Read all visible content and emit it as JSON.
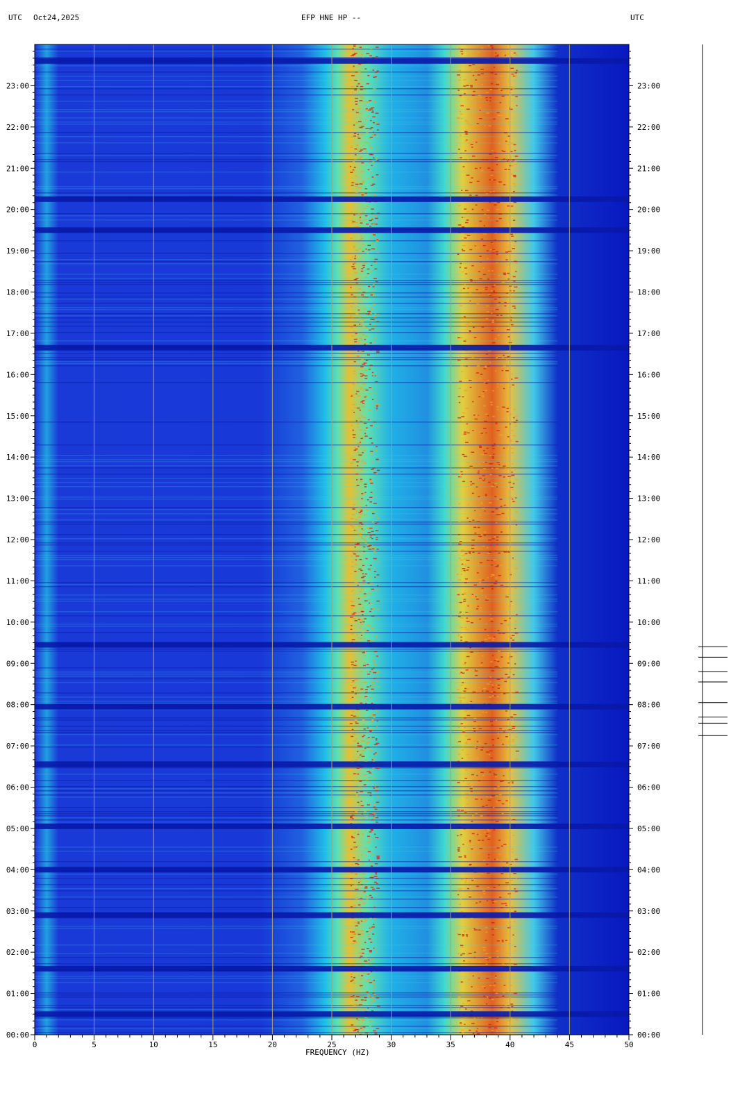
{
  "header": {
    "left_label": "UTC",
    "date": "Oct24,2025",
    "title": "EFP HNE HP --",
    "right_label": "UTC"
  },
  "chart_data": {
    "type": "heatmap",
    "title": "EFP HNE HP --",
    "date": "Oct24,2025",
    "xlabel": "FREQUENCY (HZ)",
    "ylabel_left": "UTC",
    "ylabel_right": "UTC",
    "xlim": [
      0,
      50
    ],
    "x_ticks": [
      0,
      5,
      10,
      15,
      20,
      25,
      30,
      35,
      40,
      45,
      50
    ],
    "x_tick_labels": [
      "0",
      "5",
      "10",
      "15",
      "20",
      "25",
      "30",
      "35",
      "40",
      "45",
      "50"
    ],
    "ylim_hours": [
      0,
      24
    ],
    "y_ticks_hours": [
      0,
      1,
      2,
      3,
      4,
      5,
      6,
      7,
      8,
      9,
      10,
      11,
      12,
      13,
      14,
      15,
      16,
      17,
      18,
      19,
      20,
      21,
      22,
      23
    ],
    "y_tick_labels": [
      "00:00",
      "01:00",
      "02:00",
      "03:00",
      "04:00",
      "05:00",
      "06:00",
      "07:00",
      "08:00",
      "09:00",
      "10:00",
      "11:00",
      "12:00",
      "13:00",
      "14:00",
      "15:00",
      "16:00",
      "17:00",
      "18:00",
      "19:00",
      "20:00",
      "21:00",
      "22:00",
      "23:00"
    ],
    "grid_lines_hz": [
      5,
      10,
      15,
      20,
      25,
      30,
      35,
      40,
      45
    ],
    "energy_bands": [
      {
        "f_min": 25,
        "f_max": 29,
        "level": "high"
      },
      {
        "f_min": 34.5,
        "f_max": 41,
        "level": "high"
      },
      {
        "f_min": 29,
        "f_max": 34.5,
        "level": "medium"
      },
      {
        "f_min": 0,
        "f_max": 25,
        "level": "low"
      },
      {
        "f_min": 44,
        "f_max": 50,
        "level": "none"
      }
    ],
    "quiet_gaps_hours": [
      0.5,
      1.6,
      2.9,
      4.0,
      5.05,
      6.55,
      7.95,
      9.45,
      16.65,
      19.5,
      20.25,
      23.6
    ],
    "event_marks_hours": [
      9.4,
      9.15,
      8.8,
      8.55,
      8.05,
      7.7,
      7.55,
      7.25
    ],
    "colors": {
      "background": "#0a1bc8",
      "low": "#1a3fe0",
      "medium": "#10c8e8",
      "high": "#e8d020",
      "peak": "#d02010",
      "grid": "#b0a060"
    }
  }
}
